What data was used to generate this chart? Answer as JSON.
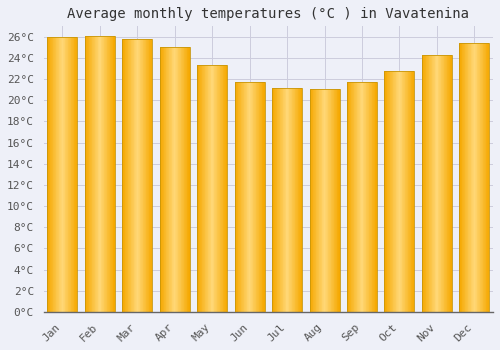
{
  "title": "Average monthly temperatures (°C ) in Vavatenina",
  "categories": [
    "Jan",
    "Feb",
    "Mar",
    "Apr",
    "May",
    "Jun",
    "Jul",
    "Aug",
    "Sep",
    "Oct",
    "Nov",
    "Dec"
  ],
  "values": [
    26.0,
    26.1,
    25.8,
    25.0,
    23.3,
    21.7,
    21.2,
    21.1,
    21.7,
    22.8,
    24.3,
    25.4
  ],
  "bar_color_left": "#F5A800",
  "bar_color_center": "#FFD878",
  "bar_color_right": "#F5A800",
  "bar_edge_color": "#C8960A",
  "background_color": "#EEF0F8",
  "plot_bg_color": "#EEF0F8",
  "grid_color": "#CCCCDD",
  "title_fontsize": 10,
  "tick_fontsize": 8,
  "ylim": [
    0,
    27
  ],
  "yticks": [
    0,
    2,
    4,
    6,
    8,
    10,
    12,
    14,
    16,
    18,
    20,
    22,
    24,
    26
  ]
}
